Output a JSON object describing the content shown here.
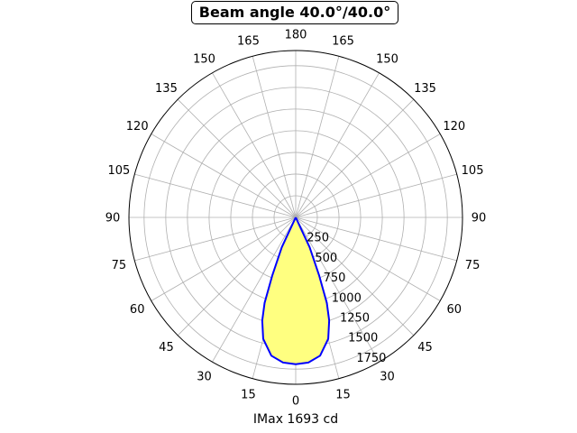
{
  "chart_data": {
    "type": "polar",
    "title": "Beam angle 40.0°/40.0°",
    "xlabel": "IMax 1693 cd",
    "angle_tick_labels": [
      {
        "deg": 180,
        "label": "180"
      },
      {
        "deg": 165,
        "label": "165"
      },
      {
        "deg": 150,
        "label": "150"
      },
      {
        "deg": 135,
        "label": "135"
      },
      {
        "deg": 120,
        "label": "120"
      },
      {
        "deg": 105,
        "label": "105"
      },
      {
        "deg": 90,
        "label": "90"
      },
      {
        "deg": 75,
        "label": "75"
      },
      {
        "deg": 60,
        "label": "60"
      },
      {
        "deg": 45,
        "label": "45"
      },
      {
        "deg": 30,
        "label": "30"
      },
      {
        "deg": 15,
        "label": "15"
      },
      {
        "deg": 0,
        "label": "0"
      },
      {
        "deg": -15,
        "label": "15"
      },
      {
        "deg": -30,
        "label": "30"
      },
      {
        "deg": -45,
        "label": "45"
      },
      {
        "deg": -60,
        "label": "60"
      },
      {
        "deg": -75,
        "label": "75"
      },
      {
        "deg": -90,
        "label": "90"
      },
      {
        "deg": -105,
        "label": "105"
      },
      {
        "deg": -120,
        "label": "120"
      },
      {
        "deg": -135,
        "label": "135"
      },
      {
        "deg": -150,
        "label": "150"
      },
      {
        "deg": -165,
        "label": "165"
      }
    ],
    "radial_ticks": [
      250,
      500,
      750,
      1000,
      1250,
      1500,
      1750
    ],
    "radial_tick_labels": [
      "250",
      "500",
      "750",
      "1000",
      "1250",
      "1500",
      "1750"
    ],
    "rmax": 1925,
    "series": [
      {
        "line_color": "#0000ff",
        "fill_color": "#ffff80",
        "angles": [
          -90,
          -30,
          -25,
          -22,
          -20,
          -18,
          -15,
          -10,
          -5,
          0,
          5,
          10,
          15,
          18,
          20,
          22,
          25,
          30,
          90
        ],
        "values": [
          0,
          0,
          380,
          720,
          1050,
          1250,
          1450,
          1620,
          1680,
          1693,
          1680,
          1620,
          1450,
          1250,
          1050,
          720,
          380,
          0,
          0
        ]
      }
    ],
    "grid": true
  }
}
